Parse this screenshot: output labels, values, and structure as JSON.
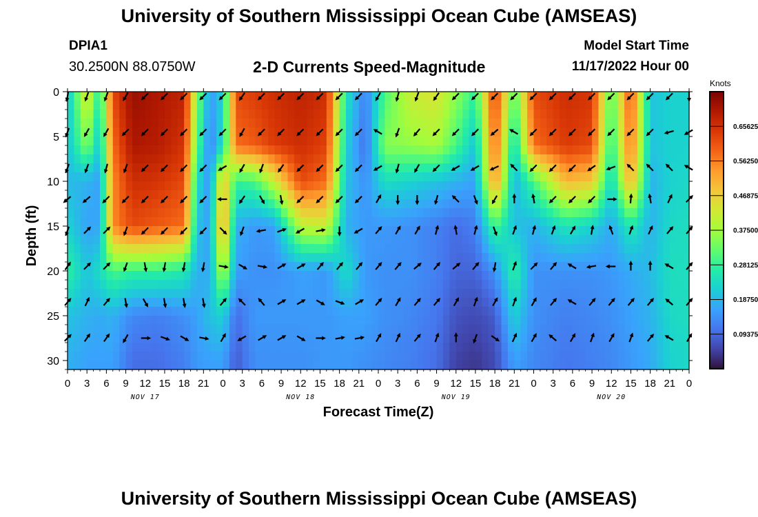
{
  "header": {
    "title": "University of Southern Mississippi Ocean Cube (AMSEAS)",
    "station_id": "DPIA1",
    "coords": "30.2500N  88.0750W",
    "product": "2-D Currents Speed-Magnitude",
    "model_start_label": "Model Start Time",
    "model_start_value": "11/17/2022 Hour 00"
  },
  "footer": {
    "title": "University of Southern Mississippi Ocean Cube (AMSEAS)"
  },
  "chart_data": {
    "type": "heatmap",
    "title": "2-D Currents Speed-Magnitude",
    "xlabel": "Forecast Time(Z)",
    "ylabel": "Depth (ft)",
    "xlim": [
      0,
      96
    ],
    "ylim": [
      0,
      31
    ],
    "x_ticks": [
      0,
      3,
      6,
      9,
      12,
      15,
      18,
      21,
      24,
      27,
      30,
      33,
      36,
      39,
      42,
      45,
      48,
      51,
      54,
      57,
      60,
      63,
      66,
      69,
      72,
      75,
      78,
      81,
      84,
      87,
      90,
      93,
      96
    ],
    "x_tick_labels": [
      "0",
      "3",
      "6",
      "9",
      "12",
      "15",
      "18",
      "21",
      "0",
      "3",
      "6",
      "9",
      "12",
      "15",
      "18",
      "21",
      "0",
      "3",
      "6",
      "9",
      "12",
      "15",
      "18",
      "21",
      "0",
      "3",
      "6",
      "9",
      "12",
      "15",
      "18",
      "21",
      "0"
    ],
    "y_ticks": [
      0,
      5,
      10,
      15,
      20,
      25,
      30
    ],
    "y_tick_labels": [
      "0",
      "5",
      "10",
      "15",
      "20",
      "25",
      "30"
    ],
    "date_labels": [
      {
        "hour": 12,
        "label": "NOV 17"
      },
      {
        "hour": 36,
        "label": "NOV 18"
      },
      {
        "hour": 60,
        "label": "NOV 19"
      },
      {
        "hour": 84,
        "label": "NOV 20"
      }
    ],
    "colorbar": {
      "unit": "Knots",
      "vmin": 0,
      "vmax": 0.75,
      "ticks": [
        0.09375,
        0.1875,
        0.28125,
        0.375,
        0.46875,
        0.5625,
        0.65625
      ],
      "tick_labels": [
        "0.09375",
        "0.18750",
        "0.28125",
        "0.37500",
        "0.46875",
        "0.56250",
        "0.65625"
      ],
      "colors": [
        "#30123b",
        "#4145ab",
        "#4675ed",
        "#39a2fc",
        "#1bcfd4",
        "#24eca6",
        "#61fc6c",
        "#a4fc3b",
        "#d1e834",
        "#f3c63a",
        "#fe9b2d",
        "#f36315",
        "#d93806",
        "#b11901",
        "#7a0403"
      ]
    },
    "speed_profile": {
      "depths_ft": [
        0,
        6,
        10,
        15,
        20,
        25,
        30
      ],
      "columns": [
        {
          "hour": 0,
          "speeds": [
            0.2,
            0.2,
            0.19,
            0.22,
            0.28,
            0.2,
            0.18
          ]
        },
        {
          "hour": 3,
          "speeds": [
            0.45,
            0.35,
            0.18,
            0.16,
            0.2,
            0.18,
            0.16
          ]
        },
        {
          "hour": 5,
          "speeds": [
            0.25,
            0.2,
            0.16,
            0.17,
            0.24,
            0.17,
            0.16
          ]
        },
        {
          "hour": 7,
          "speeds": [
            0.62,
            0.58,
            0.55,
            0.55,
            0.3,
            0.18,
            0.16
          ]
        },
        {
          "hour": 10,
          "speeds": [
            0.72,
            0.7,
            0.66,
            0.62,
            0.28,
            0.13,
            0.1
          ]
        },
        {
          "hour": 14,
          "speeds": [
            0.7,
            0.69,
            0.65,
            0.6,
            0.28,
            0.12,
            0.1
          ]
        },
        {
          "hour": 18,
          "speeds": [
            0.68,
            0.65,
            0.62,
            0.58,
            0.26,
            0.14,
            0.12
          ]
        },
        {
          "hour": 20,
          "speeds": [
            0.36,
            0.32,
            0.24,
            0.2,
            0.18,
            0.16,
            0.15
          ]
        },
        {
          "hour": 22,
          "speeds": [
            0.15,
            0.12,
            0.14,
            0.16,
            0.17,
            0.2,
            0.16
          ]
        },
        {
          "hour": 24,
          "speeds": [
            0.22,
            0.24,
            0.5,
            0.55,
            0.4,
            0.22,
            0.16
          ]
        },
        {
          "hour": 26,
          "speeds": [
            0.62,
            0.58,
            0.28,
            0.18,
            0.16,
            0.1,
            0.08
          ]
        },
        {
          "hour": 29,
          "speeds": [
            0.64,
            0.6,
            0.3,
            0.15,
            0.14,
            0.15,
            0.14
          ]
        },
        {
          "hour": 32,
          "speeds": [
            0.66,
            0.64,
            0.42,
            0.16,
            0.14,
            0.15,
            0.14
          ]
        },
        {
          "hour": 36,
          "speeds": [
            0.68,
            0.66,
            0.62,
            0.4,
            0.16,
            0.15,
            0.14
          ]
        },
        {
          "hour": 40,
          "speeds": [
            0.66,
            0.63,
            0.58,
            0.42,
            0.15,
            0.15,
            0.15
          ]
        },
        {
          "hour": 43,
          "speeds": [
            0.25,
            0.22,
            0.2,
            0.18,
            0.24,
            0.16,
            0.15
          ]
        },
        {
          "hour": 46,
          "speeds": [
            0.12,
            0.1,
            0.14,
            0.15,
            0.15,
            0.16,
            0.14
          ]
        },
        {
          "hour": 49,
          "speeds": [
            0.3,
            0.35,
            0.24,
            0.15,
            0.14,
            0.14,
            0.13
          ]
        },
        {
          "hour": 53,
          "speeds": [
            0.42,
            0.36,
            0.22,
            0.14,
            0.14,
            0.13,
            0.12
          ]
        },
        {
          "hour": 57,
          "speeds": [
            0.44,
            0.38,
            0.2,
            0.12,
            0.12,
            0.11,
            0.1
          ]
        },
        {
          "hour": 60,
          "speeds": [
            0.36,
            0.3,
            0.18,
            0.1,
            0.09,
            0.07,
            0.05
          ]
        },
        {
          "hour": 63,
          "speeds": [
            0.28,
            0.2,
            0.16,
            0.12,
            0.09,
            0.06,
            0.04
          ]
        },
        {
          "hour": 66,
          "speeds": [
            0.64,
            0.6,
            0.55,
            0.3,
            0.14,
            0.08,
            0.06
          ]
        },
        {
          "hour": 69,
          "speeds": [
            0.3,
            0.22,
            0.18,
            0.2,
            0.28,
            0.22,
            0.16
          ]
        },
        {
          "hour": 72,
          "speeds": [
            0.62,
            0.58,
            0.3,
            0.18,
            0.14,
            0.14,
            0.13
          ]
        },
        {
          "hour": 77,
          "speeds": [
            0.66,
            0.64,
            0.5,
            0.25,
            0.14,
            0.12,
            0.11
          ]
        },
        {
          "hour": 81,
          "speeds": [
            0.65,
            0.62,
            0.48,
            0.22,
            0.14,
            0.13,
            0.12
          ]
        },
        {
          "hour": 84,
          "speeds": [
            0.3,
            0.26,
            0.22,
            0.17,
            0.15,
            0.14,
            0.13
          ]
        },
        {
          "hour": 87,
          "speeds": [
            0.62,
            0.58,
            0.52,
            0.26,
            0.17,
            0.16,
            0.15
          ]
        },
        {
          "hour": 90,
          "speeds": [
            0.2,
            0.2,
            0.18,
            0.18,
            0.19,
            0.18,
            0.17
          ]
        },
        {
          "hour": 93,
          "speeds": [
            0.22,
            0.22,
            0.22,
            0.23,
            0.24,
            0.23,
            0.22
          ]
        },
        {
          "hour": 96,
          "speeds": [
            0.22,
            0.22,
            0.23,
            0.24,
            0.24,
            0.24,
            0.23
          ]
        }
      ]
    },
    "vectors": {
      "hours": [
        0,
        3,
        6,
        9,
        12,
        15,
        18,
        21,
        24,
        27,
        30,
        33,
        36,
        39,
        42,
        45,
        48,
        51,
        54,
        57,
        60,
        63,
        66,
        69,
        72,
        75,
        78,
        81,
        84,
        87,
        90,
        93,
        96
      ],
      "depths_ft": [
        0.5,
        4.5,
        8.5,
        12,
        15.5,
        19.5,
        23.5,
        27.5
      ],
      "directions_deg": [
        [
          190,
          200,
          200,
          210,
          225,
          225,
          225,
          225,
          225,
          215,
          225,
          225,
          225,
          225,
          225,
          225,
          210,
          195,
          200,
          215,
          225,
          225,
          225,
          225,
          225,
          225,
          225,
          225,
          225,
          225,
          225,
          225,
          180
        ],
        [
          200,
          210,
          210,
          225,
          225,
          225,
          225,
          225,
          225,
          210,
          225,
          225,
          225,
          225,
          225,
          225,
          300,
          200,
          220,
          225,
          225,
          225,
          230,
          300,
          225,
          225,
          225,
          225,
          225,
          225,
          225,
          255,
          240
        ],
        [
          200,
          200,
          195,
          200,
          225,
          225,
          225,
          225,
          240,
          210,
          200,
          215,
          225,
          225,
          225,
          225,
          240,
          195,
          210,
          225,
          240,
          240,
          245,
          315,
          225,
          225,
          225,
          235,
          250,
          315,
          315,
          315,
          300
        ],
        [
          230,
          230,
          225,
          225,
          225,
          225,
          225,
          225,
          270,
          215,
          150,
          170,
          225,
          225,
          225,
          225,
          30,
          180,
          180,
          195,
          315,
          160,
          210,
          0,
          350,
          225,
          225,
          225,
          90,
          5,
          350,
          25,
          45
        ],
        [
          200,
          45,
          45,
          200,
          225,
          225,
          225,
          225,
          135,
          200,
          260,
          70,
          240,
          80,
          180,
          240,
          40,
          30,
          30,
          15,
          350,
          15,
          160,
          20,
          15,
          20,
          30,
          10,
          340,
          20,
          25,
          40,
          40
        ],
        [
          35,
          45,
          45,
          200,
          170,
          190,
          190,
          190,
          100,
          120,
          100,
          60,
          60,
          40,
          40,
          40,
          40,
          40,
          50,
          40,
          50,
          40,
          190,
          20,
          45,
          40,
          300,
          260,
          270,
          0,
          0,
          300,
          40
        ],
        [
          40,
          25,
          40,
          170,
          150,
          170,
          170,
          170,
          40,
          315,
          320,
          60,
          60,
          120,
          110,
          60,
          40,
          30,
          40,
          40,
          30,
          20,
          30,
          20,
          30,
          40,
          300,
          40,
          40,
          40,
          40,
          310,
          40
        ],
        [
          45,
          35,
          35,
          210,
          90,
          110,
          120,
          100,
          30,
          240,
          60,
          60,
          120,
          90,
          80,
          80,
          30,
          25,
          40,
          20,
          0,
          200,
          125,
          25,
          30,
          310,
          30,
          20,
          30,
          20,
          40,
          300,
          30
        ]
      ]
    }
  }
}
